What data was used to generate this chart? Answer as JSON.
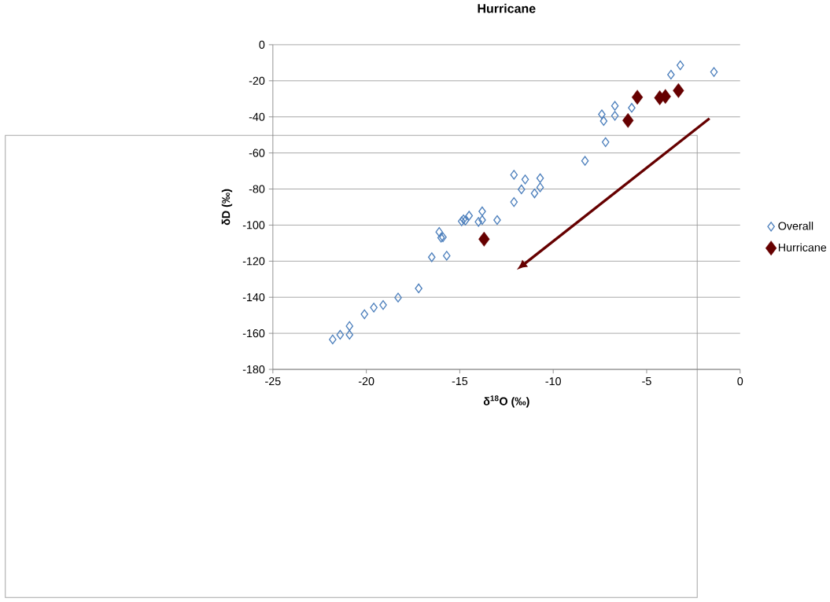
{
  "chart_data": {
    "type": "scatter",
    "title": "Hurricane",
    "xlabel": "δ$^{18}$O (‰)",
    "ylabel": "δD (‰)",
    "xlim": [
      -25,
      0
    ],
    "xticks": [
      -25,
      -20,
      -15,
      -10,
      -5,
      0
    ],
    "ylim": [
      -180,
      0
    ],
    "yticks": [
      -180,
      -160,
      -140,
      -120,
      -100,
      -80,
      -60,
      -40,
      -20,
      0
    ],
    "grid": "y",
    "legend": "right",
    "marker": "diamond",
    "series": [
      {
        "name": "Overall",
        "color": "#4f81bd",
        "x": [
          -21.8,
          -21.4,
          -20.9,
          -20.9,
          -20.1,
          -19.6,
          -19.1,
          -18.3,
          -17.2,
          -16.5,
          -15.7,
          -16.1,
          -16.0,
          -15.9,
          -14.9,
          -14.8,
          -14.7,
          -14.5,
          -14.0,
          -13.8,
          -13.8,
          -13.0,
          -12.1,
          -12.1,
          -11.7,
          -11.5,
          -11.0,
          -10.7,
          -10.7,
          -8.3,
          -7.4,
          -7.3,
          -7.2,
          -6.7,
          -6.7,
          -5.8,
          -3.7,
          -3.2,
          -1.4
        ],
        "values": [
          -163.4,
          -160.8,
          -156,
          -160.8,
          -149.4,
          -145.7,
          -144.3,
          -140.2,
          -135.1,
          -117.8,
          -117,
          -103.8,
          -107,
          -106.7,
          -97.9,
          -96.8,
          -97.5,
          -94.8,
          -98.2,
          -92.4,
          -97.2,
          -97.2,
          -72.1,
          -87.2,
          -80.2,
          -74.7,
          -82.4,
          -79.1,
          -74,
          -64.4,
          -38.6,
          -42.3,
          -54,
          -33.9,
          -39.4,
          -35,
          -16.6,
          -11.4,
          -15.1
        ]
      },
      {
        "name": "Hurricane",
        "color": "#660000",
        "x": [
          -13.7,
          -6.0,
          -5.5,
          -4.3,
          -4.0,
          -3.3
        ],
        "values": [
          -107.8,
          -42,
          -29.1,
          -29.4,
          -28.7,
          -25.4
        ]
      }
    ]
  }
}
